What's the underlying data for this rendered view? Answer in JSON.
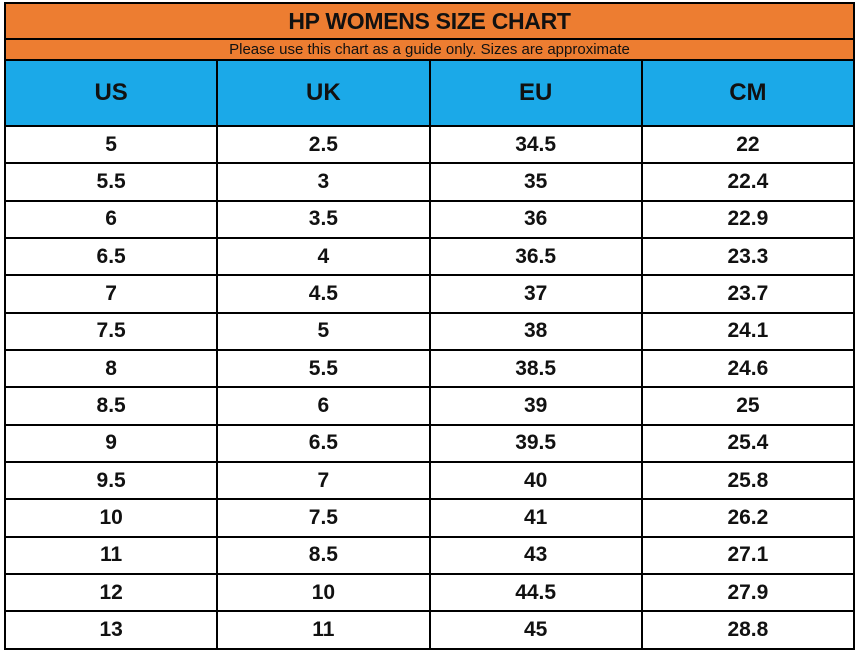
{
  "title": "HP WOMENS SIZE CHART",
  "subtitle": "Please use this chart as a guide only. Sizes are approximate",
  "colors": {
    "header_orange": "#ED7D31",
    "header_blue": "#1BA9E8",
    "border": "#000000",
    "row_background": "#FFFFFF",
    "text": "#111111"
  },
  "chart_data": {
    "type": "table",
    "title": "HP WOMENS SIZE CHART",
    "subtitle": "Please use this chart as a guide only. Sizes are approximate",
    "columns": [
      "US",
      "UK",
      "EU",
      "CM"
    ],
    "rows": [
      [
        "5",
        "2.5",
        "34.5",
        "22"
      ],
      [
        "5.5",
        "3",
        "35",
        "22.4"
      ],
      [
        "6",
        "3.5",
        "36",
        "22.9"
      ],
      [
        "6.5",
        "4",
        "36.5",
        "23.3"
      ],
      [
        "7",
        "4.5",
        "37",
        "23.7"
      ],
      [
        "7.5",
        "5",
        "38",
        "24.1"
      ],
      [
        "8",
        "5.5",
        "38.5",
        "24.6"
      ],
      [
        "8.5",
        "6",
        "39",
        "25"
      ],
      [
        "9",
        "6.5",
        "39.5",
        "25.4"
      ],
      [
        "9.5",
        "7",
        "40",
        "25.8"
      ],
      [
        "10",
        "7.5",
        "41",
        "26.2"
      ],
      [
        "11",
        "8.5",
        "43",
        "27.1"
      ],
      [
        "12",
        "10",
        "44.5",
        "27.9"
      ],
      [
        "13",
        "11",
        "45",
        "28.8"
      ]
    ]
  }
}
